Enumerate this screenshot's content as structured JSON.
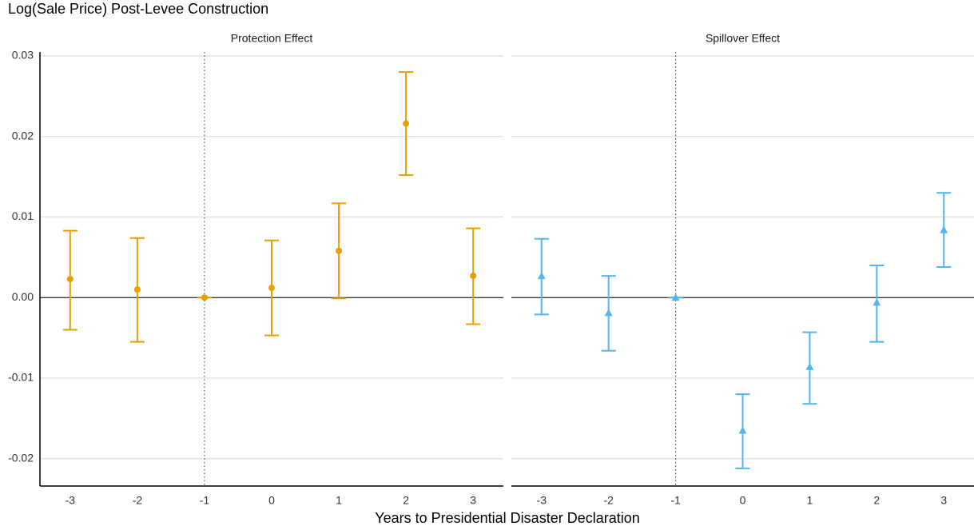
{
  "chart_data": {
    "type": "errorbar",
    "title": "Log(Sale Price) Post-Levee Construction",
    "x_label": "Years to Presidential Disaster Declaration",
    "ylim": [
      -0.0234,
      0.0305
    ],
    "yticks": [
      -0.02,
      -0.01,
      {
        "value": 0,
        "label": "0.00"
      },
      0.01,
      0.02,
      0.03
    ],
    "xlim": [
      -3.45,
      3.45
    ],
    "xticks": [
      -3,
      -2,
      -1,
      0,
      1,
      2,
      3
    ],
    "reference_x": -1,
    "reference_y": 0,
    "grid": true,
    "panels": [
      {
        "title": "Protection Effect",
        "series": [
          {
            "color": "#e69f00",
            "marker": "circle",
            "x": [
              -3,
              -2,
              -1,
              0,
              1,
              2,
              3
            ],
            "values": [
              0.0023,
              0.001,
              0,
              0.0012,
              0.0058,
              0.0216,
              0.0027
            ],
            "lower": [
              -0.004,
              -0.0055,
              0,
              -0.0047,
              -0.0001,
              0.0152,
              -0.0033
            ],
            "upper": [
              0.0083,
              0.0074,
              0,
              0.0071,
              0.0117,
              0.028,
              0.0086
            ]
          }
        ]
      },
      {
        "title": "Spillover Effect",
        "series": [
          {
            "color": "#56b4e9",
            "marker": "triangle",
            "x": [
              -3,
              -2,
              -1,
              0,
              1,
              2,
              3
            ],
            "values": [
              0.0027,
              -0.0019,
              0,
              -0.0165,
              -0.0086,
              -0.0006,
              0.0084
            ],
            "lower": [
              -0.0021,
              -0.0066,
              0,
              -0.0212,
              -0.0132,
              -0.0055,
              0.0038
            ],
            "upper": [
              0.0073,
              0.0027,
              0,
              -0.012,
              -0.0043,
              0.004,
              0.013
            ]
          }
        ]
      }
    ]
  }
}
